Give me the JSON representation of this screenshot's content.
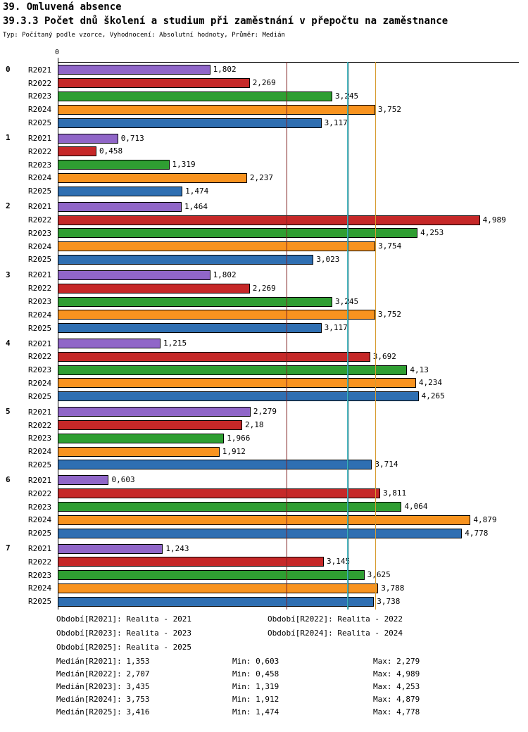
{
  "header": {
    "title1": "39. Omluvená absence",
    "title2": "39.3.3 Počet dnů školení a studium při zaměstnání v přepočtu na zaměstnance",
    "subtitle": "Typ: Počítaný podle vzorce, Vyhodnocení: Absolutní hodnoty, Průměr: Medián"
  },
  "chart_data": {
    "type": "bar",
    "orientation": "horizontal",
    "title": "39.3.3 Počet dnů školení a studium při zaměstnání v přepočtu na zaměstnance",
    "xlim": [
      0,
      5.45
    ],
    "x_axis_zero_label": "0",
    "series": [
      "R2021",
      "R2022",
      "R2023",
      "R2024",
      "R2025"
    ],
    "series_colors": {
      "R2021": "#9066C8",
      "R2022": "#C62828",
      "R2023": "#2F9E32",
      "R2024": "#F8931F",
      "R2025": "#2F6FB2"
    },
    "groups_data": [
      {
        "group": "0",
        "bars": [
          {
            "series": "R2021",
            "value": 1.802,
            "label": "1,802"
          },
          {
            "series": "R2022",
            "value": 2.269,
            "label": "2,269"
          },
          {
            "series": "R2023",
            "value": 3.245,
            "label": "3,245"
          },
          {
            "series": "R2024",
            "value": 3.752,
            "label": "3,752"
          },
          {
            "series": "R2025",
            "value": 3.117,
            "label": "3,117"
          }
        ]
      },
      {
        "group": "1",
        "bars": [
          {
            "series": "R2021",
            "value": 0.713,
            "label": "0,713"
          },
          {
            "series": "R2022",
            "value": 0.458,
            "label": "0,458"
          },
          {
            "series": "R2023",
            "value": 1.319,
            "label": "1,319"
          },
          {
            "series": "R2024",
            "value": 2.237,
            "label": "2,237"
          },
          {
            "series": "R2025",
            "value": 1.474,
            "label": "1,474"
          }
        ]
      },
      {
        "group": "2",
        "bars": [
          {
            "series": "R2021",
            "value": 1.464,
            "label": "1,464"
          },
          {
            "series": "R2022",
            "value": 4.989,
            "label": "4,989"
          },
          {
            "series": "R2023",
            "value": 4.253,
            "label": "4,253"
          },
          {
            "series": "R2024",
            "value": 3.754,
            "label": "3,754"
          },
          {
            "series": "R2025",
            "value": 3.023,
            "label": "3,023"
          }
        ]
      },
      {
        "group": "3",
        "bars": [
          {
            "series": "R2021",
            "value": 1.802,
            "label": "1,802"
          },
          {
            "series": "R2022",
            "value": 2.269,
            "label": "2,269"
          },
          {
            "series": "R2023",
            "value": 3.245,
            "label": "3,245"
          },
          {
            "series": "R2024",
            "value": 3.752,
            "label": "3,752"
          },
          {
            "series": "R2025",
            "value": 3.117,
            "label": "3,117"
          }
        ]
      },
      {
        "group": "4",
        "bars": [
          {
            "series": "R2021",
            "value": 1.215,
            "label": "1,215"
          },
          {
            "series": "R2022",
            "value": 3.692,
            "label": "3,692"
          },
          {
            "series": "R2023",
            "value": 4.13,
            "label": "4,13"
          },
          {
            "series": "R2024",
            "value": 4.234,
            "label": "4,234"
          },
          {
            "series": "R2025",
            "value": 4.265,
            "label": "4,265"
          }
        ]
      },
      {
        "group": "5",
        "bars": [
          {
            "series": "R2021",
            "value": 2.279,
            "label": "2,279"
          },
          {
            "series": "R2022",
            "value": 2.18,
            "label": "2,18"
          },
          {
            "series": "R2023",
            "value": 1.966,
            "label": "1,966"
          },
          {
            "series": "R2024",
            "value": 1.912,
            "label": "1,912"
          },
          {
            "series": "R2025",
            "value": 3.714,
            "label": "3,714"
          }
        ]
      },
      {
        "group": "6",
        "bars": [
          {
            "series": "R2021",
            "value": 0.603,
            "label": "0,603"
          },
          {
            "series": "R2022",
            "value": 3.811,
            "label": "3,811"
          },
          {
            "series": "R2023",
            "value": 4.064,
            "label": "4,064"
          },
          {
            "series": "R2024",
            "value": 4.879,
            "label": "4,879"
          },
          {
            "series": "R2025",
            "value": 4.778,
            "label": "4,778"
          }
        ]
      },
      {
        "group": "7",
        "bars": [
          {
            "series": "R2021",
            "value": 1.243,
            "label": "1,243"
          },
          {
            "series": "R2022",
            "value": 3.145,
            "label": "3,145"
          },
          {
            "series": "R2023",
            "value": 3.625,
            "label": "3,625"
          },
          {
            "series": "R2024",
            "value": 3.788,
            "label": "3,788"
          },
          {
            "series": "R2025",
            "value": 3.738,
            "label": "3,738"
          }
        ]
      }
    ],
    "reference_lines": [
      {
        "series": "R2022",
        "value": 2.707,
        "color": "#7E2020"
      },
      {
        "series": "R2025",
        "value": 3.416,
        "color": "#3AAFB8"
      },
      {
        "series": "R2023",
        "value": 3.435,
        "color": "#1F7A85"
      },
      {
        "series": "R2024",
        "value": 3.753,
        "color": "#D79B2F"
      }
    ]
  },
  "legend": {
    "periods": [
      "Období[R2021]: Realita - 2021",
      "Období[R2022]: Realita - 2022",
      "Období[R2023]: Realita - 2023",
      "Období[R2024]: Realita - 2024",
      "Období[R2025]: Realita - 2025"
    ],
    "stats": [
      {
        "median_label": "Medián[R2021]: 1,353",
        "min_label": "Min: 0,603",
        "max_label": "Max: 2,279"
      },
      {
        "median_label": "Medián[R2022]: 2,707",
        "min_label": "Min: 0,458",
        "max_label": "Max: 4,989"
      },
      {
        "median_label": "Medián[R2023]: 3,435",
        "min_label": "Min: 1,319",
        "max_label": "Max: 4,253"
      },
      {
        "median_label": "Medián[R2024]: 3,753",
        "min_label": "Min: 1,912",
        "max_label": "Max: 4,879"
      },
      {
        "median_label": "Medián[R2025]: 3,416",
        "min_label": "Min: 1,474",
        "max_label": "Max: 4,778"
      }
    ]
  }
}
